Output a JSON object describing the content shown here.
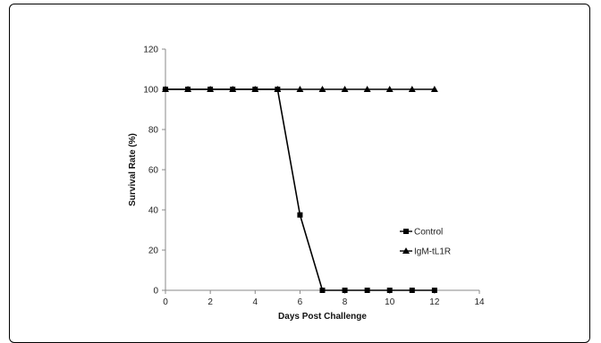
{
  "chart_data": {
    "type": "line",
    "title": "",
    "xlabel": "Days Post Challenge",
    "ylabel": "Survival Rate (%)",
    "xlim": [
      0,
      14
    ],
    "ylim": [
      0,
      120
    ],
    "xticks": [
      0,
      2,
      4,
      6,
      8,
      10,
      12,
      14
    ],
    "yticks": [
      0,
      20,
      40,
      60,
      80,
      100,
      120
    ],
    "grid": false,
    "legend_position": "right",
    "series": [
      {
        "name": "Control",
        "marker": "square",
        "color": "#000000",
        "x": [
          0,
          1,
          2,
          3,
          4,
          5,
          6,
          7,
          8,
          9,
          10,
          11,
          12
        ],
        "y": [
          100,
          100,
          100,
          100,
          100,
          100,
          37.5,
          0,
          0,
          0,
          0,
          0,
          0
        ]
      },
      {
        "name": "IgM-tL1R",
        "marker": "triangle",
        "color": "#000000",
        "x": [
          0,
          1,
          2,
          3,
          4,
          5,
          6,
          7,
          8,
          9,
          10,
          11,
          12
        ],
        "y": [
          100,
          100,
          100,
          100,
          100,
          100,
          100,
          100,
          100,
          100,
          100,
          100,
          100
        ]
      }
    ]
  }
}
